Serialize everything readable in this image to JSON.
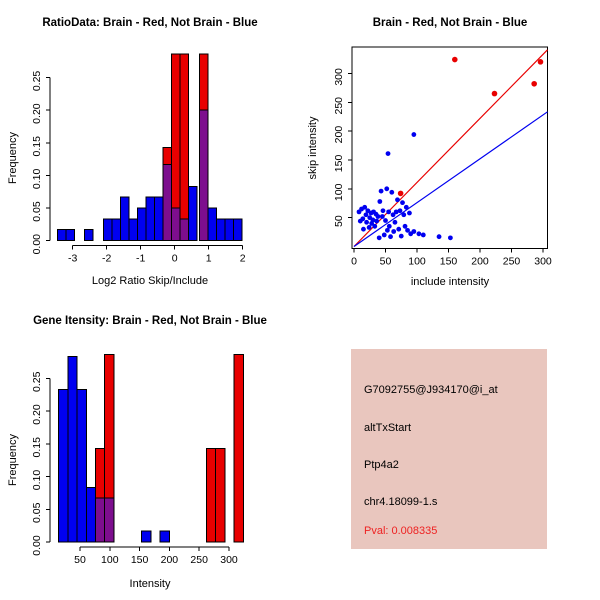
{
  "colors": {
    "blue": "#0000f0",
    "red": "#e80000",
    "purple": "#7d0e8e",
    "axis": "#000000",
    "info_bg": "#e9c6be",
    "pval_red": "#ee2222"
  },
  "chart_data": [
    {
      "type": "bar",
      "title": "RatioData: Brain - Red, Not Brain - Blue",
      "xlabel": "Log2 Ratio Skip/Include",
      "ylabel": "Frequency",
      "legend_note": "Brain histogram red, Not Brain histogram blue, purple = overlap",
      "xlim": [
        -3.6,
        2.1
      ],
      "ylim": [
        0,
        0.2857
      ],
      "xticks": [
        -3,
        -2,
        -1,
        0,
        1,
        2
      ],
      "ytick_values": [
        0,
        0.05,
        0.1,
        0.15,
        0.2,
        0.25
      ],
      "ytick_labels": [
        "0.00",
        "0.05",
        "0.10",
        "0.15",
        "0.20",
        "0.25"
      ],
      "bars": [
        {
          "x0": -3.45,
          "x1": -3.2,
          "segments": [
            {
              "from": 0,
              "to": 0.017,
              "color": "blue"
            }
          ]
        },
        {
          "x0": -3.2,
          "x1": -2.95,
          "segments": [
            {
              "from": 0,
              "to": 0.017,
              "color": "blue"
            }
          ]
        },
        {
          "x0": -2.65,
          "x1": -2.4,
          "segments": [
            {
              "from": 0,
              "to": 0.017,
              "color": "blue"
            }
          ]
        },
        {
          "x0": -2.1,
          "x1": -1.85,
          "segments": [
            {
              "from": 0,
              "to": 0.033,
              "color": "blue"
            }
          ]
        },
        {
          "x0": -1.85,
          "x1": -1.6,
          "segments": [
            {
              "from": 0,
              "to": 0.033,
              "color": "blue"
            }
          ]
        },
        {
          "x0": -1.6,
          "x1": -1.35,
          "segments": [
            {
              "from": 0,
              "to": 0.067,
              "color": "blue"
            }
          ]
        },
        {
          "x0": -1.35,
          "x1": -1.1,
          "segments": [
            {
              "from": 0,
              "to": 0.033,
              "color": "blue"
            }
          ]
        },
        {
          "x0": -1.1,
          "x1": -0.85,
          "segments": [
            {
              "from": 0,
              "to": 0.05,
              "color": "blue"
            }
          ]
        },
        {
          "x0": -0.85,
          "x1": -0.6,
          "segments": [
            {
              "from": 0,
              "to": 0.067,
              "color": "blue"
            }
          ]
        },
        {
          "x0": -0.6,
          "x1": -0.35,
          "segments": [
            {
              "from": 0,
              "to": 0.067,
              "color": "blue"
            }
          ]
        },
        {
          "x0": -0.35,
          "x1": -0.1,
          "segments": [
            {
              "from": 0,
              "to": 0.117,
              "color": "purple"
            },
            {
              "from": 0.117,
              "to": 0.143,
              "color": "red"
            }
          ]
        },
        {
          "x0": -0.1,
          "x1": 0.15,
          "segments": [
            {
              "from": 0,
              "to": 0.05,
              "color": "purple"
            },
            {
              "from": 0.05,
              "to": 0.286,
              "color": "red"
            }
          ]
        },
        {
          "x0": 0.15,
          "x1": 0.4,
          "segments": [
            {
              "from": 0,
              "to": 0.033,
              "color": "purple"
            },
            {
              "from": 0.033,
              "to": 0.286,
              "color": "red"
            }
          ]
        },
        {
          "x0": 0.4,
          "x1": 0.65,
          "segments": [
            {
              "from": 0,
              "to": 0.083,
              "color": "blue"
            }
          ]
        },
        {
          "x0": 0.73,
          "x1": 0.98,
          "segments": [
            {
              "from": 0,
              "to": 0.2,
              "color": "purple"
            },
            {
              "from": 0.2,
              "to": 0.286,
              "color": "red"
            }
          ]
        },
        {
          "x0": 0.98,
          "x1": 1.23,
          "segments": [
            {
              "from": 0,
              "to": 0.05,
              "color": "blue"
            }
          ]
        },
        {
          "x0": 1.23,
          "x1": 1.48,
          "segments": [
            {
              "from": 0,
              "to": 0.033,
              "color": "blue"
            }
          ]
        },
        {
          "x0": 1.48,
          "x1": 1.73,
          "segments": [
            {
              "from": 0,
              "to": 0.033,
              "color": "blue"
            }
          ]
        },
        {
          "x0": 1.73,
          "x1": 1.98,
          "segments": [
            {
              "from": 0,
              "to": 0.033,
              "color": "blue"
            }
          ]
        }
      ]
    },
    {
      "type": "scatter",
      "title": "Brain - Red, Not Brain - Blue",
      "xlabel": "include intensity",
      "ylabel": "skip intensity",
      "xlim": [
        0,
        310
      ],
      "ylim": [
        0,
        345
      ],
      "xticks": [
        0,
        50,
        100,
        150,
        200,
        250,
        300
      ],
      "yticks": [
        50,
        100,
        150,
        200,
        250,
        300
      ],
      "lines": [
        {
          "slope": 1.11,
          "intercept": 0,
          "color": "red"
        },
        {
          "slope": 0.76,
          "intercept": 0,
          "color": "blue"
        }
      ],
      "series": [
        {
          "name": "Not Brain",
          "color": "blue",
          "points": [
            [
              8,
              60
            ],
            [
              10,
              44
            ],
            [
              12,
              65
            ],
            [
              14,
              48
            ],
            [
              15,
              30
            ],
            [
              17,
              68
            ],
            [
              19,
              55
            ],
            [
              20,
              42
            ],
            [
              22,
              62
            ],
            [
              24,
              33
            ],
            [
              25,
              50
            ],
            [
              27,
              58
            ],
            [
              28,
              40
            ],
            [
              30,
              46
            ],
            [
              31,
              60
            ],
            [
              33,
              35
            ],
            [
              35,
              56
            ],
            [
              36,
              44
            ],
            [
              38,
              52
            ],
            [
              40,
              15
            ],
            [
              41,
              78
            ],
            [
              43,
              96
            ],
            [
              45,
              52
            ],
            [
              46,
              62
            ],
            [
              48,
              20
            ],
            [
              50,
              45
            ],
            [
              52,
              100
            ],
            [
              53,
              28
            ],
            [
              54,
              161
            ],
            [
              55,
              60
            ],
            [
              56,
              35
            ],
            [
              58,
              17
            ],
            [
              60,
              94
            ],
            [
              62,
              55
            ],
            [
              63,
              26
            ],
            [
              65,
              42
            ],
            [
              67,
              60
            ],
            [
              69,
              81
            ],
            [
              71,
              30
            ],
            [
              73,
              62
            ],
            [
              75,
              18
            ],
            [
              77,
              76
            ],
            [
              79,
              55
            ],
            [
              81,
              35
            ],
            [
              83,
              68
            ],
            [
              85,
              28
            ],
            [
              88,
              58
            ],
            [
              90,
              22
            ],
            [
              95,
              26
            ],
            [
              95,
              194
            ],
            [
              103,
              22
            ],
            [
              110,
              20
            ],
            [
              135,
              17
            ],
            [
              153,
              15
            ]
          ]
        },
        {
          "name": "Brain",
          "color": "red",
          "points": [
            [
              74,
              92
            ],
            [
              160,
              324
            ],
            [
              223,
              265
            ],
            [
              286,
              282
            ],
            [
              296,
              320
            ]
          ]
        }
      ]
    },
    {
      "type": "bar",
      "title": "Gene Itensity: Brain - Red, Not Brain - Blue",
      "xlabel": "Intensity",
      "ylabel": "Frequency",
      "legend_note": "Brain histogram red, Not Brain histogram blue, purple = overlap",
      "xlim": [
        10,
        330
      ],
      "ylim": [
        0,
        0.2857
      ],
      "xticks": [
        50,
        100,
        150,
        200,
        250,
        300
      ],
      "ytick_values": [
        0,
        0.05,
        0.1,
        0.15,
        0.2,
        0.25
      ],
      "ytick_labels": [
        "0.00",
        "0.05",
        "0.10",
        "0.15",
        "0.20",
        "0.25"
      ],
      "bars": [
        {
          "x0": 14,
          "x1": 29.5,
          "segments": [
            {
              "from": 0,
              "to": 0.233,
              "color": "blue"
            }
          ]
        },
        {
          "x0": 29.5,
          "x1": 45,
          "segments": [
            {
              "from": 0,
              "to": 0.283,
              "color": "blue"
            }
          ]
        },
        {
          "x0": 45,
          "x1": 60.5,
          "segments": [
            {
              "from": 0,
              "to": 0.233,
              "color": "blue"
            }
          ]
        },
        {
          "x0": 60.5,
          "x1": 76,
          "segments": [
            {
              "from": 0,
              "to": 0.083,
              "color": "blue"
            }
          ]
        },
        {
          "x0": 76,
          "x1": 91.5,
          "segments": [
            {
              "from": 0,
              "to": 0.067,
              "color": "purple"
            },
            {
              "from": 0.067,
              "to": 0.143,
              "color": "red"
            }
          ]
        },
        {
          "x0": 91.5,
          "x1": 107,
          "segments": [
            {
              "from": 0,
              "to": 0.067,
              "color": "purple"
            },
            {
              "from": 0.067,
              "to": 0.286,
              "color": "red"
            }
          ]
        },
        {
          "x0": 153.5,
          "x1": 169,
          "segments": [
            {
              "from": 0,
              "to": 0.017,
              "color": "blue"
            }
          ]
        },
        {
          "x0": 184.5,
          "x1": 200,
          "segments": [
            {
              "from": 0,
              "to": 0.017,
              "color": "blue"
            }
          ]
        },
        {
          "x0": 262,
          "x1": 277.5,
          "segments": [
            {
              "from": 0,
              "to": 0.143,
              "color": "red"
            }
          ]
        },
        {
          "x0": 277.5,
          "x1": 293,
          "segments": [
            {
              "from": 0,
              "to": 0.143,
              "color": "red"
            }
          ]
        },
        {
          "x0": 308.5,
          "x1": 324,
          "segments": [
            {
              "from": 0,
              "to": 0.286,
              "color": "red"
            }
          ]
        }
      ]
    }
  ],
  "info_box": {
    "bg": "#e9c6be",
    "lines": [
      {
        "text": "G7092755@J934170@i_at",
        "color": "#000000"
      },
      {
        "text": "altTxStart",
        "color": "#000000"
      },
      {
        "text": "Ptp4a2",
        "color": "#000000"
      },
      {
        "text": "chr4.18099-1.s",
        "color": "#000000"
      },
      {
        "text": "Pval: 0.008335",
        "color": "#ee2222"
      }
    ]
  }
}
